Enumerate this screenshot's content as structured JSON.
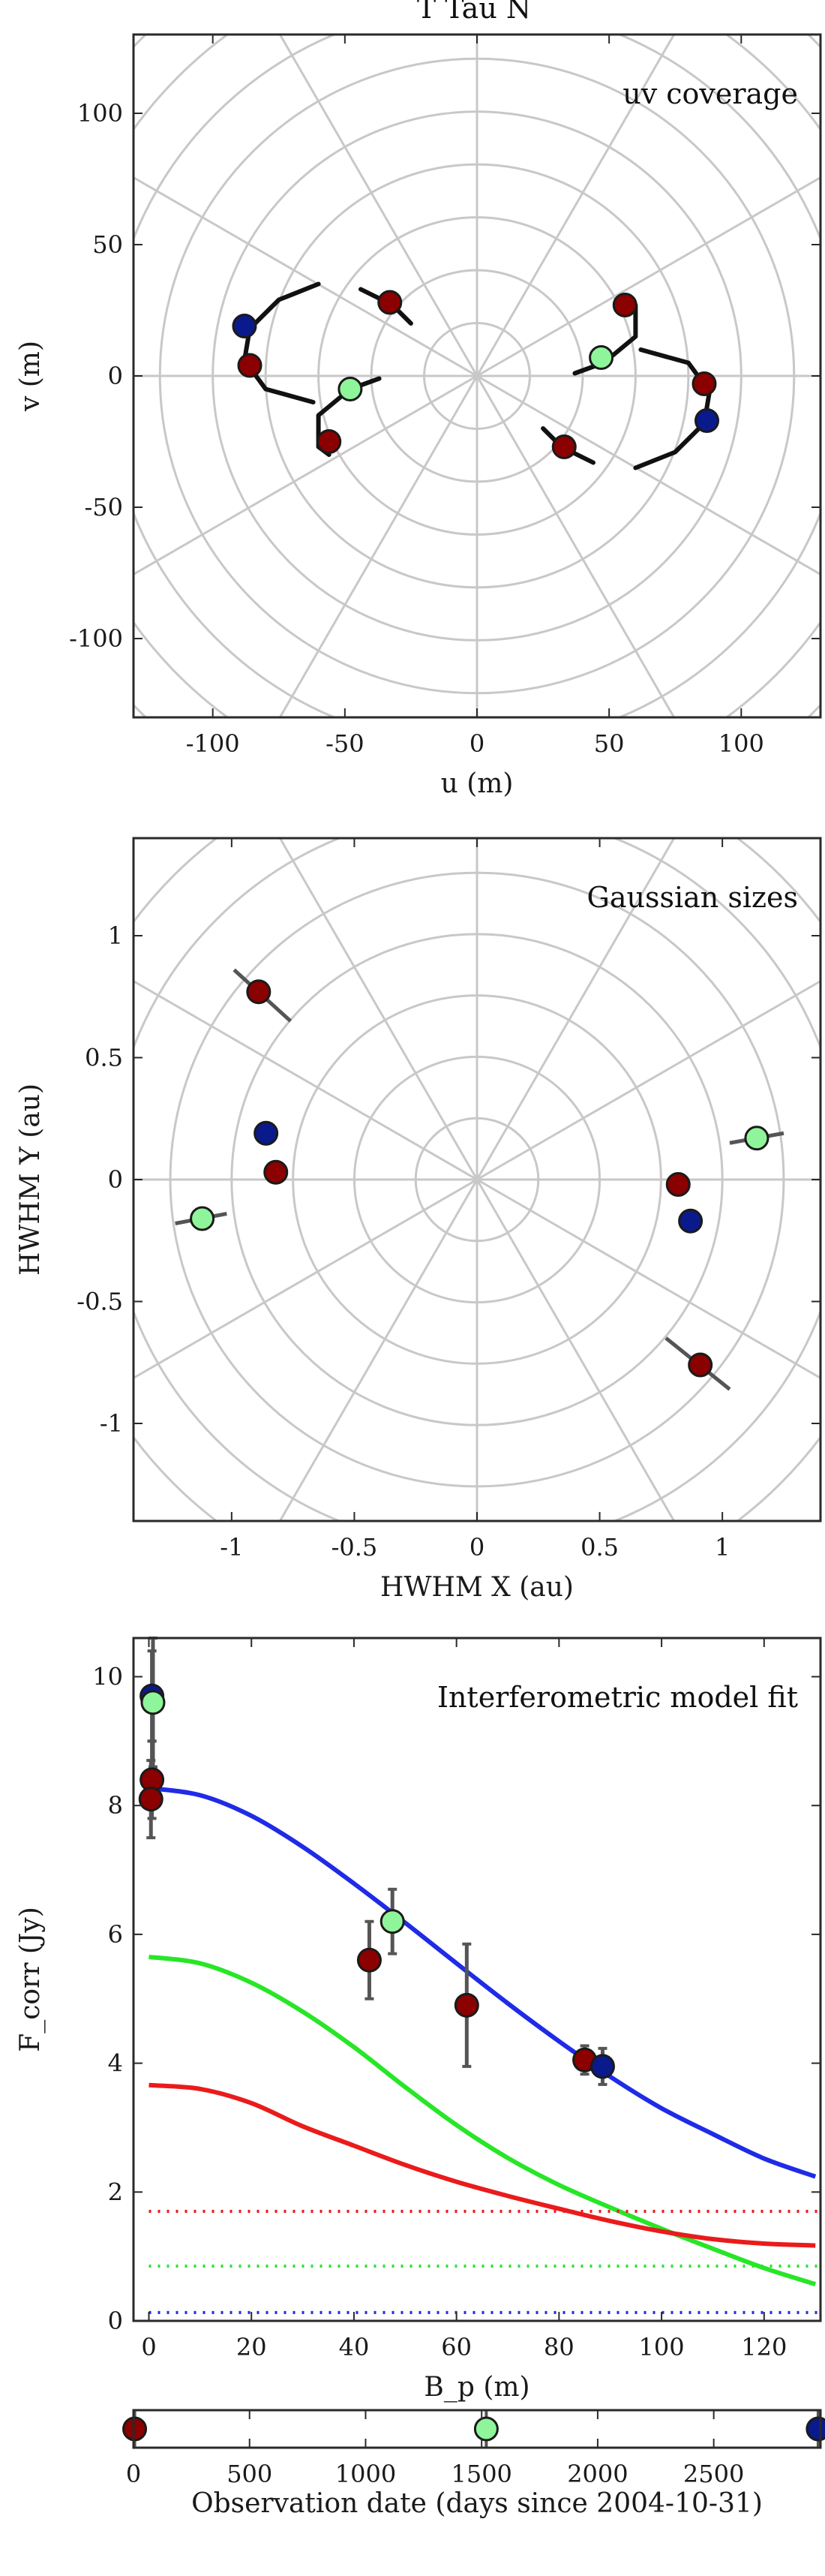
{
  "figure_title": "T Tau N",
  "colors": {
    "red_marker": "#8b0000",
    "blue_marker": "#0a1a8c",
    "green_marker": "#8ff59a",
    "grid": "#c8c8c8",
    "total_model": "#1f2be6",
    "extended_model": "#27e627",
    "compact_model": "#ea1b1b",
    "error_bar": "#555555"
  },
  "chart_data": [
    {
      "type": "scatter",
      "title": "uv coverage",
      "xlabel": "u (m)",
      "ylabel": "v (m)",
      "xlim": [
        -130,
        130
      ],
      "ylim": [
        -130,
        130
      ],
      "xticks": [
        -100,
        -50,
        0,
        50,
        100
      ],
      "yticks": [
        -100,
        -50,
        0,
        50,
        100
      ],
      "grid": "polar",
      "polar_rings": [
        20,
        40,
        60,
        80,
        100,
        120,
        140,
        160,
        180
      ],
      "polar_spokes_deg": [
        0,
        30,
        60,
        90,
        120,
        150
      ],
      "points": [
        {
          "u": -88,
          "v": 19,
          "color": "blue"
        },
        {
          "u": -86,
          "v": 4,
          "color": "red"
        },
        {
          "u": -33,
          "v": 28,
          "color": "red"
        },
        {
          "u": -48,
          "v": -5,
          "color": "green"
        },
        {
          "u": -56,
          "v": -25,
          "color": "red"
        },
        {
          "u": 56,
          "v": 27,
          "color": "red"
        },
        {
          "u": 47,
          "v": 7,
          "color": "green"
        },
        {
          "u": 86,
          "v": -3,
          "color": "red"
        },
        {
          "u": 87,
          "v": -17,
          "color": "blue"
        },
        {
          "u": 33,
          "v": -27,
          "color": "red"
        }
      ],
      "tracks": [
        [
          [
            -60,
            35
          ],
          [
            -75,
            29
          ],
          [
            -86,
            18
          ],
          [
            -88,
            6
          ],
          [
            -80,
            -5
          ],
          [
            -62,
            -10
          ]
        ],
        [
          [
            -25,
            20
          ],
          [
            -30,
            25
          ],
          [
            -36,
            29
          ],
          [
            -44,
            33
          ]
        ],
        [
          [
            -37,
            -1
          ],
          [
            -48,
            -5
          ],
          [
            -60,
            -15
          ],
          [
            -60,
            -27
          ],
          [
            -56,
            -30
          ]
        ],
        [
          [
            60,
            -35
          ],
          [
            75,
            -29
          ],
          [
            86,
            -18
          ],
          [
            88,
            -6
          ],
          [
            80,
            5
          ],
          [
            62,
            10
          ]
        ],
        [
          [
            25,
            -20
          ],
          [
            30,
            -25
          ],
          [
            36,
            -29
          ],
          [
            44,
            -33
          ]
        ],
        [
          [
            37,
            1
          ],
          [
            48,
            5
          ],
          [
            60,
            15
          ],
          [
            60,
            27
          ],
          [
            56,
            30
          ]
        ]
      ]
    },
    {
      "type": "scatter",
      "title": "Gaussian sizes",
      "xlabel": "HWHM X (au)",
      "ylabel": "HWHM Y (au)",
      "xlim": [
        -1.4,
        1.4
      ],
      "ylim": [
        -1.4,
        1.4
      ],
      "xticks": [
        -1,
        -0.5,
        0,
        0.5,
        1
      ],
      "yticks": [
        -1,
        -0.5,
        0,
        0.5,
        1
      ],
      "grid": "polar",
      "polar_rings": [
        0.25,
        0.5,
        0.75,
        1.0,
        1.25,
        1.5,
        1.75,
        2.0
      ],
      "polar_spokes_deg": [
        0,
        30,
        60,
        90,
        120,
        150
      ],
      "points": [
        {
          "x": -0.89,
          "y": 0.77,
          "ex": [
            -0.99,
            -0.76
          ],
          "ey": [
            0.86,
            0.65
          ],
          "color": "red"
        },
        {
          "x": -0.86,
          "y": 0.19,
          "color": "blue"
        },
        {
          "x": -0.82,
          "y": 0.03,
          "color": "red"
        },
        {
          "x": -1.12,
          "y": -0.16,
          "ex": [
            -1.23,
            -1.02
          ],
          "ey": [
            -0.18,
            -0.14
          ],
          "color": "green"
        },
        {
          "x": 0.82,
          "y": -0.02,
          "color": "red"
        },
        {
          "x": 0.87,
          "y": -0.17,
          "color": "blue"
        },
        {
          "x": 1.14,
          "y": 0.17,
          "ex": [
            1.03,
            1.25
          ],
          "ey": [
            0.15,
            0.19
          ],
          "color": "green"
        },
        {
          "x": 0.91,
          "y": -0.76,
          "ex": [
            0.77,
            1.03
          ],
          "ey": [
            -0.65,
            -0.86
          ],
          "color": "red"
        }
      ]
    },
    {
      "type": "line",
      "title": "Interferometric model fit",
      "xlabel": "B_p (m)",
      "ylabel": "F_corr (Jy)",
      "xlim": [
        -3,
        131
      ],
      "ylim": [
        0,
        10.6
      ],
      "xticks": [
        0,
        20,
        40,
        60,
        80,
        100,
        120
      ],
      "yticks": [
        0,
        2,
        4,
        6,
        8,
        10
      ],
      "grid": false,
      "series": [
        {
          "key": "total",
          "color": "blue",
          "style": "solid",
          "x": [
            0,
            10,
            20,
            30,
            40,
            50,
            60,
            70,
            80,
            90,
            100,
            110,
            120,
            130
          ],
          "values": [
            8.27,
            8.16,
            7.84,
            7.36,
            6.79,
            6.18,
            5.55,
            4.93,
            4.34,
            3.79,
            3.3,
            2.9,
            2.52,
            2.24
          ]
        },
        {
          "key": "extended",
          "color": "green",
          "style": "solid",
          "x": [
            0,
            10,
            20,
            30,
            40,
            50,
            60,
            70,
            80,
            90,
            100,
            110,
            120,
            130
          ],
          "values": [
            5.65,
            5.55,
            5.25,
            4.8,
            4.25,
            3.63,
            3.04,
            2.53,
            2.11,
            1.76,
            1.43,
            1.12,
            0.82,
            0.57
          ]
        },
        {
          "key": "compact",
          "color": "red",
          "style": "solid",
          "x": [
            0,
            10,
            20,
            30,
            40,
            50,
            60,
            70,
            80,
            90,
            100,
            110,
            120,
            130
          ],
          "values": [
            3.66,
            3.6,
            3.38,
            3.02,
            2.72,
            2.42,
            2.16,
            1.94,
            1.74,
            1.55,
            1.39,
            1.27,
            1.2,
            1.17
          ]
        },
        {
          "key": "compact_floor",
          "color": "red",
          "style": "dotted",
          "x": [
            0,
            131
          ],
          "values": [
            1.7,
            1.7
          ]
        },
        {
          "key": "extended_floor",
          "color": "green",
          "style": "dotted",
          "x": [
            0,
            131
          ],
          "values": [
            0.85,
            0.85
          ]
        },
        {
          "key": "total_floor",
          "color": "blue",
          "style": "dotted",
          "x": [
            0,
            131
          ],
          "values": [
            0.13,
            0.13
          ]
        }
      ],
      "points": [
        {
          "x": 0.6,
          "y": 9.7,
          "err": 0.7,
          "color": "blue"
        },
        {
          "x": 0.8,
          "y": 9.6,
          "err": 1.0,
          "color": "green"
        },
        {
          "x": 0.6,
          "y": 8.4,
          "err": 0.6,
          "color": "red"
        },
        {
          "x": 0.4,
          "y": 8.1,
          "err": 0.6,
          "color": "red"
        },
        {
          "x": 43,
          "y": 5.6,
          "err": 0.6,
          "color": "red"
        },
        {
          "x": 47.5,
          "y": 6.2,
          "err": 0.5,
          "color": "green"
        },
        {
          "x": 62,
          "y": 4.9,
          "err": 0.95,
          "color": "red"
        },
        {
          "x": 85,
          "y": 4.05,
          "err": 0.22,
          "color": "red"
        },
        {
          "x": 88.5,
          "y": 3.95,
          "err": 0.28,
          "color": "blue"
        }
      ]
    },
    {
      "type": "scatter",
      "title": "",
      "xlabel": "Observation date (days since 2004-10-31)",
      "ylabel": "",
      "xlim": [
        0,
        2960
      ],
      "xticks": [
        0,
        500,
        1000,
        1500,
        2000,
        2500
      ],
      "grid": false,
      "points": [
        {
          "x": 5,
          "color": "red"
        },
        {
          "x": 1520,
          "color": "green"
        },
        {
          "x": 2950,
          "color": "blue"
        }
      ]
    }
  ]
}
